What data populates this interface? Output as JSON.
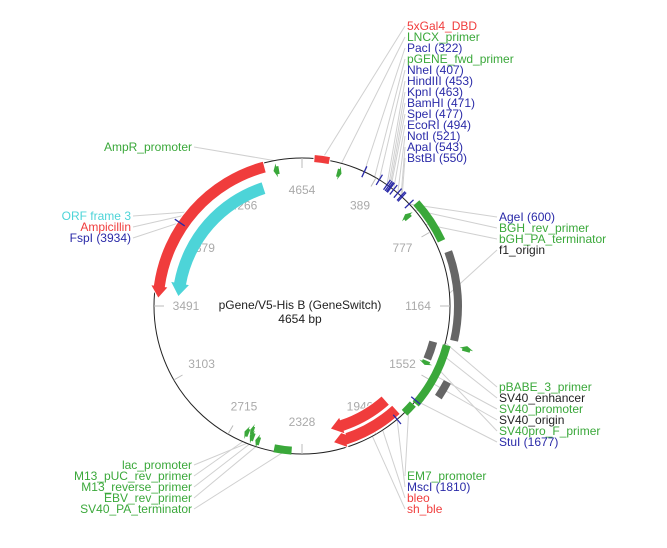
{
  "plasmid": {
    "name": "pGene/V5-His B (GeneSwitch)",
    "length_label": "4654 bp",
    "length": 4654
  },
  "ticks": [
    "4654",
    "389",
    "777",
    "1164",
    "1552",
    "1940",
    "2328",
    "2715",
    "3103",
    "3491",
    "3879",
    "4266"
  ],
  "colors": {
    "red": "#f03c3c",
    "green": "#3aa83a",
    "blue": "#2a2aa8",
    "gray": "#666666",
    "cyan": "#4dd4d8",
    "black": "#222222"
  },
  "features": [
    {
      "name": "5xGal4_DBD",
      "start": 60,
      "end": 140,
      "type": "box",
      "color": "red",
      "ring": 0
    },
    {
      "name": "LNCX_primer",
      "start": 190,
      "end": 215,
      "type": "arrow",
      "color": "green",
      "ring": -10
    },
    {
      "name": "bGH_PA_terminator",
      "start": 620,
      "end": 840,
      "type": "box",
      "color": "green",
      "ring": 6
    },
    {
      "name": "BGH_rev_primer",
      "start": 625,
      "end": 655,
      "type": "arrowrev",
      "color": "green",
      "ring": -10
    },
    {
      "name": "f1_origin",
      "start": 900,
      "end": 1330,
      "type": "box",
      "color": "gray",
      "ring": 8
    },
    {
      "name": "SV40_enhancer",
      "start": 1360,
      "end": 1460,
      "type": "box",
      "color": "gray",
      "ring": -12
    },
    {
      "name": "SV40_promoter",
      "start": 1360,
      "end": 1690,
      "type": "box",
      "color": "green",
      "ring": 2
    },
    {
      "name": "SV40_origin",
      "start": 1520,
      "end": 1600,
      "type": "box",
      "color": "gray",
      "ring": 16
    },
    {
      "name": "pBABE_3_primer",
      "start": 1340,
      "end": 1365,
      "type": "arrowrev",
      "color": "green",
      "ring": 22
    },
    {
      "name": "SV40pro_F_primer",
      "start": 1470,
      "end": 1495,
      "type": "arrow",
      "color": "green",
      "ring": -12
    },
    {
      "name": "EM7_promoter",
      "start": 1700,
      "end": 1760,
      "type": "box",
      "color": "green",
      "ring": 0
    },
    {
      "name": "sh_ble",
      "start": 1780,
      "end": 2160,
      "type": "arrow",
      "color": "red",
      "ring": -8
    },
    {
      "name": "bleo",
      "start": 1790,
      "end": 2160,
      "type": "arrow",
      "color": "red",
      "ring": -22
    },
    {
      "name": "SV40_PA_terminator",
      "start": 2380,
      "end": 2470,
      "type": "box",
      "color": "green",
      "ring": -3
    },
    {
      "name": "EBV_rev_primer",
      "start": 2550,
      "end": 2575,
      "type": "arrow",
      "color": "green",
      "ring": -6
    },
    {
      "name": "M13_reverse_primer",
      "start": 2585,
      "end": 2610,
      "type": "arrow",
      "color": "green",
      "ring": -8
    },
    {
      "name": "M13_pUC_rev_primer",
      "start": 2620,
      "end": 2645,
      "type": "arrow",
      "color": "green",
      "ring": -10
    },
    {
      "name": "lac_promoter",
      "start": 2600,
      "end": 2620,
      "type": "arrow",
      "color": "green",
      "ring": -14
    },
    {
      "name": "Ampicillin",
      "start": 3530,
      "end": 4460,
      "type": "arrowrev",
      "color": "red",
      "ring": -4
    },
    {
      "name": "ORF frame 3",
      "start": 3550,
      "end": 4420,
      "type": "arrowrev",
      "color": "cyan",
      "ring": -24
    },
    {
      "name": "AmpR_promoter",
      "start": 4500,
      "end": 4530,
      "type": "arrowrev",
      "color": "green",
      "ring": -10
    }
  ],
  "sites": [
    {
      "name": "PacI (322)",
      "pos": 322
    },
    {
      "name": "NheI (407)",
      "pos": 407
    },
    {
      "name": "HindIII (453)",
      "pos": 453
    },
    {
      "name": "KpnI (463)",
      "pos": 463
    },
    {
      "name": "BamHI (471)",
      "pos": 471
    },
    {
      "name": "SpeI (477)",
      "pos": 477
    },
    {
      "name": "EcoRI (494)",
      "pos": 494
    },
    {
      "name": "NotI (521)",
      "pos": 521
    },
    {
      "name": "ApaI (543)",
      "pos": 543
    },
    {
      "name": "BstBI (550)",
      "pos": 550
    },
    {
      "name": "AgeI (600)",
      "pos": 600
    },
    {
      "name": "StuI (1677)",
      "pos": 1677
    },
    {
      "name": "MscI (1810)",
      "pos": 1810
    },
    {
      "name": "FspI (3934)",
      "pos": 3934
    }
  ],
  "labels": [
    {
      "text": "5xGal4_DBD",
      "color": "red",
      "pos": 100
    },
    {
      "text": "LNCX_primer",
      "color": "green",
      "pos": 200
    },
    {
      "text": "PacI (322)",
      "color": "blue",
      "pos": 322
    },
    {
      "text": "pGENE_fwd_primer",
      "color": "green",
      "pos": 380
    },
    {
      "text": "NheI (407)",
      "color": "blue",
      "pos": 407
    },
    {
      "text": "HindIII (453)",
      "color": "blue",
      "pos": 453
    },
    {
      "text": "KpnI (463)",
      "color": "blue",
      "pos": 463
    },
    {
      "text": "BamHI (471)",
      "color": "blue",
      "pos": 471
    },
    {
      "text": "SpeI (477)",
      "color": "blue",
      "pos": 477
    },
    {
      "text": "EcoRI (494)",
      "color": "blue",
      "pos": 494
    },
    {
      "text": "NotI (521)",
      "color": "blue",
      "pos": 521
    },
    {
      "text": "ApaI (543)",
      "color": "blue",
      "pos": 543
    },
    {
      "text": "BstBI (550)",
      "color": "blue",
      "pos": 550
    },
    {
      "text": "AgeI (600)",
      "color": "blue",
      "pos": 600
    },
    {
      "text": "BGH_rev_primer",
      "color": "green",
      "pos": 640
    },
    {
      "text": "bGH_PA_terminator",
      "color": "green",
      "pos": 730
    },
    {
      "text": "f1_origin",
      "color": "black",
      "pos": 1100
    },
    {
      "text": "pBABE_3_primer",
      "color": "green",
      "pos": 1350
    },
    {
      "text": "SV40_enhancer",
      "color": "black",
      "pos": 1410
    },
    {
      "text": "SV40_promoter",
      "color": "green",
      "pos": 1520
    },
    {
      "text": "SV40_origin",
      "color": "black",
      "pos": 1560
    },
    {
      "text": "SV40pro_F_primer",
      "color": "green",
      "pos": 1480
    },
    {
      "text": "StuI (1677)",
      "color": "blue",
      "pos": 1677
    },
    {
      "text": "EM7_promoter",
      "color": "green",
      "pos": 1730
    },
    {
      "text": "MscI (1810)",
      "color": "blue",
      "pos": 1810
    },
    {
      "text": "bleo",
      "color": "red",
      "pos": 1900
    },
    {
      "text": "sh_ble",
      "color": "red",
      "pos": 1960
    },
    {
      "text": "lac_promoter",
      "color": "green",
      "pos": 2610
    },
    {
      "text": "M13_pUC_rev_primer",
      "color": "green",
      "pos": 2632
    },
    {
      "text": "M13_reverse_primer",
      "color": "green",
      "pos": 2597
    },
    {
      "text": "EBV_rev_primer",
      "color": "green",
      "pos": 2562
    },
    {
      "text": "SV40_PA_terminator",
      "color": "green",
      "pos": 2425
    },
    {
      "text": "ORF frame 3",
      "color": "cyan",
      "pos": 4000
    },
    {
      "text": "Ampicillin",
      "color": "red",
      "pos": 3980
    },
    {
      "text": "FspI (3934)",
      "color": "blue",
      "pos": 3934
    },
    {
      "text": "AmpR_promoter",
      "color": "green",
      "pos": 4515
    }
  ]
}
